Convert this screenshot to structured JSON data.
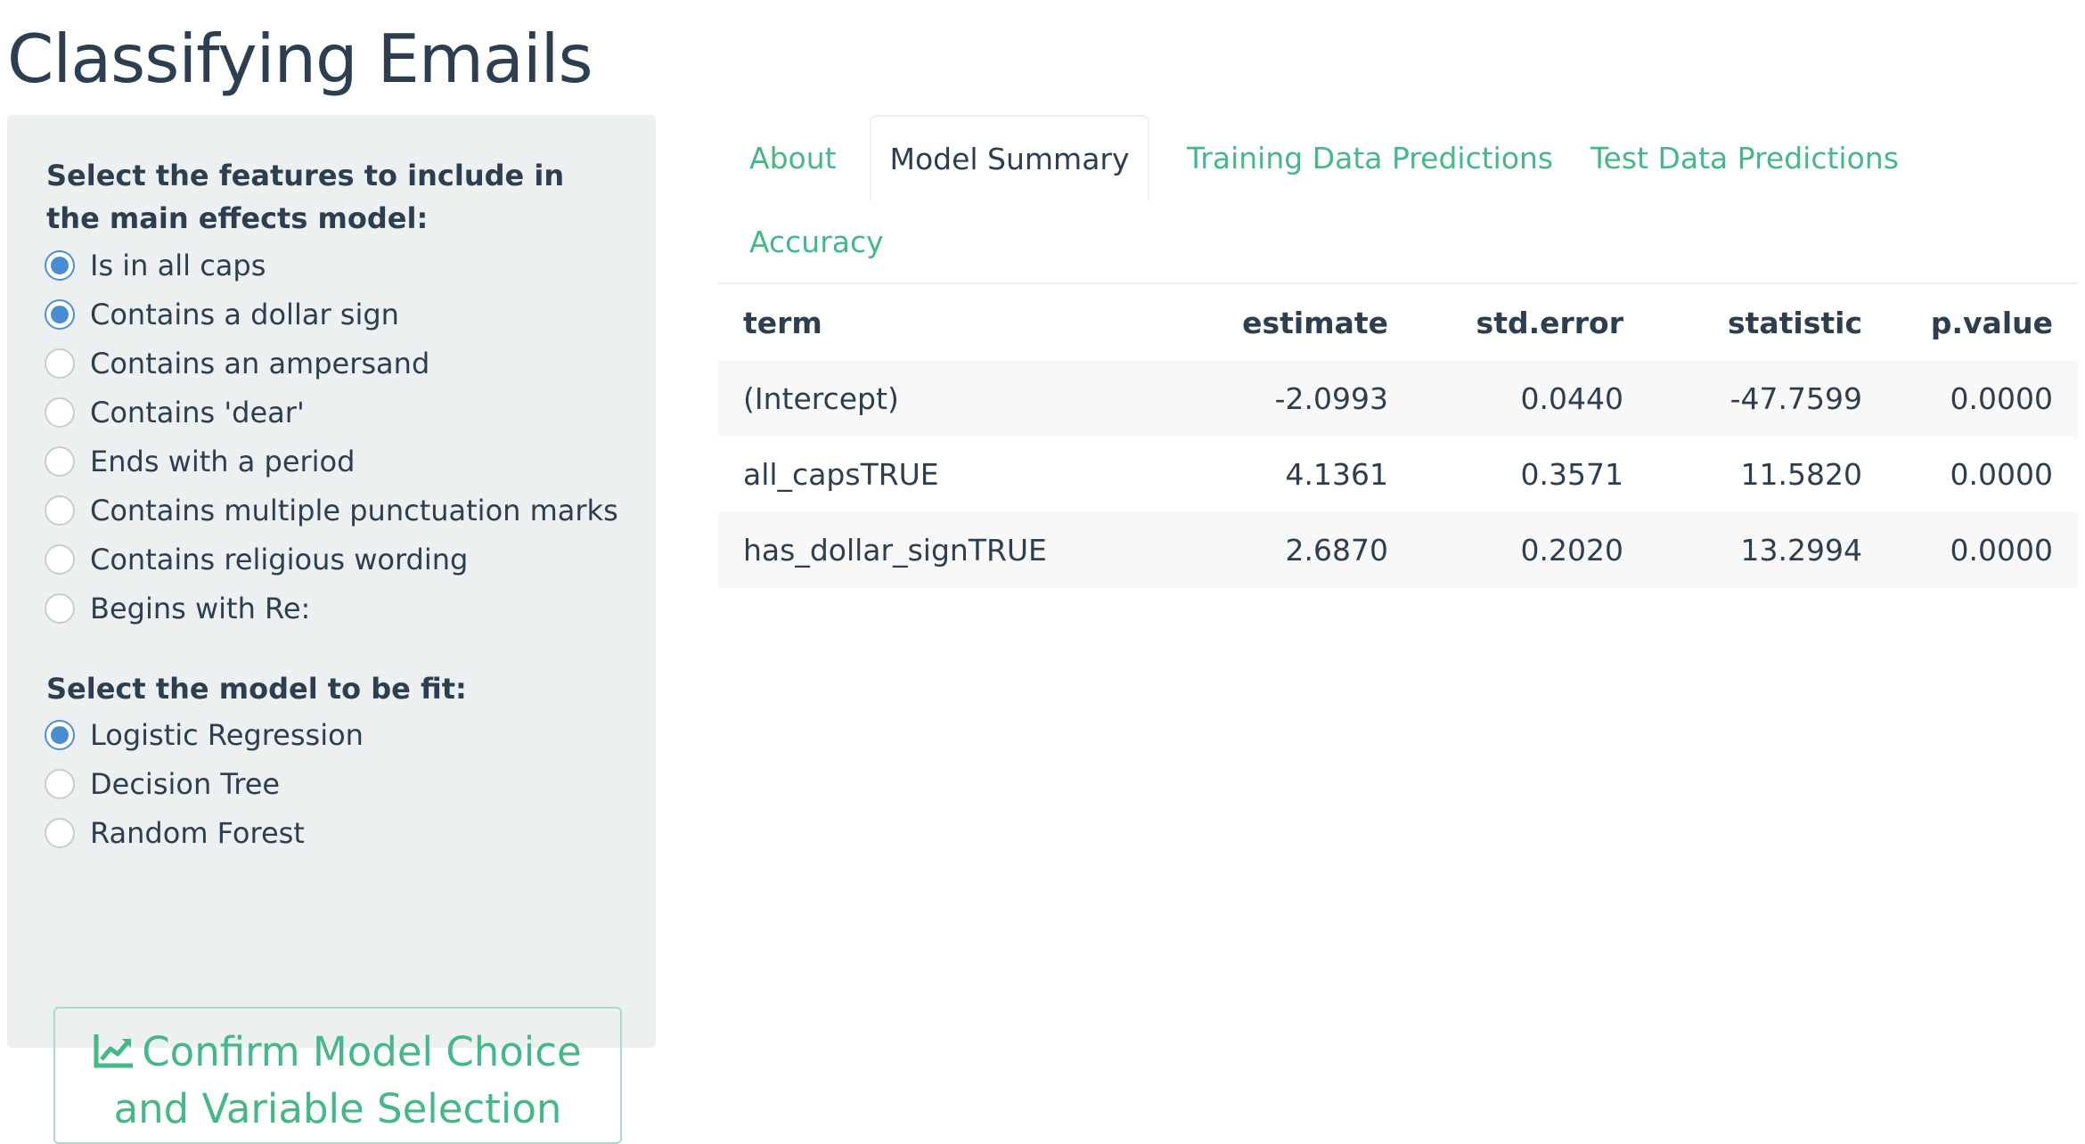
{
  "title": "Classifying Emails",
  "sidebar": {
    "features_label": "Select the features to include in the main effects model:",
    "features": [
      {
        "label": "Is in all caps",
        "checked": true
      },
      {
        "label": "Contains a dollar sign",
        "checked": true
      },
      {
        "label": "Contains an ampersand",
        "checked": false
      },
      {
        "label": "Contains 'dear'",
        "checked": false
      },
      {
        "label": "Ends with a period",
        "checked": false
      },
      {
        "label": "Contains multiple punctuation marks",
        "checked": false
      },
      {
        "label": "Contains religious wording",
        "checked": false
      },
      {
        "label": "Begins with Re:",
        "checked": false
      }
    ],
    "model_label": "Select the model to be fit:",
    "models": [
      {
        "label": "Logistic Regression",
        "checked": true
      },
      {
        "label": "Decision Tree",
        "checked": false
      },
      {
        "label": "Random Forest",
        "checked": false
      }
    ],
    "confirm_line1": "Confirm Model Choice",
    "confirm_line2": "and Variable Selection",
    "confirm_icon": "line-chart-icon"
  },
  "tabs": [
    {
      "label": "About",
      "active": false
    },
    {
      "label": "Model Summary",
      "active": true
    },
    {
      "label": "Training Data Predictions",
      "active": false
    },
    {
      "label": "Test Data Predictions",
      "active": false
    },
    {
      "label": "Accuracy",
      "active": false
    }
  ],
  "table": {
    "headers": [
      "term",
      "estimate",
      "std.error",
      "statistic",
      "p.value"
    ],
    "rows": [
      [
        "(Intercept)",
        "-2.0993",
        "0.0440",
        "-47.7599",
        "0.0000"
      ],
      [
        "all_capsTRUE",
        "4.1361",
        "0.3571",
        "11.5820",
        "0.0000"
      ],
      [
        "has_dollar_signTRUE",
        "2.6870",
        "0.2020",
        "13.2994",
        "0.0000"
      ]
    ]
  },
  "colors": {
    "accent": "#44b886",
    "radio_checked": "#4a8cd1",
    "sidebar_bg": "#ecf0f1",
    "text": "#2c3e50"
  }
}
